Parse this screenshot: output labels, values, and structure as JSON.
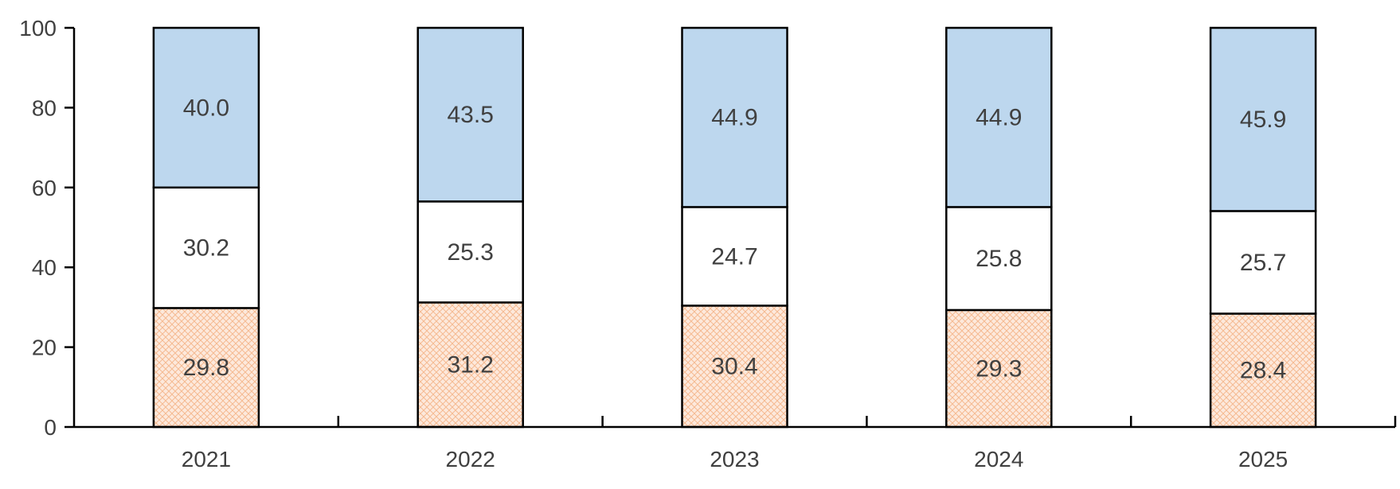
{
  "chart_data": {
    "type": "bar",
    "stacked": true,
    "categories": [
      "2021",
      "2022",
      "2023",
      "2024",
      "2025"
    ],
    "series": [
      {
        "values": [
          29.8,
          31.2,
          30.4,
          29.3,
          28.4
        ],
        "labels": [
          "29.8",
          "31.2",
          "30.4",
          "29.3",
          "28.4"
        ],
        "fill": "#fde9dc",
        "pattern": "crosshatch",
        "pattern_color": "#f4b183"
      },
      {
        "values": [
          30.2,
          25.3,
          24.7,
          25.8,
          25.7
        ],
        "labels": [
          "30.2",
          "25.3",
          "24.7",
          "25.8",
          "25.7"
        ],
        "fill": "#ffffff"
      },
      {
        "values": [
          40.0,
          43.5,
          44.9,
          44.9,
          45.9
        ],
        "labels": [
          "40.0",
          "43.5",
          "44.9",
          "44.9",
          "45.9"
        ],
        "fill": "#bdd7ee"
      }
    ],
    "ylim": [
      0,
      100
    ],
    "yticks": [
      "0",
      "20",
      "40",
      "60",
      "80",
      "100"
    ],
    "xlabel": "",
    "ylabel": "",
    "title": "",
    "grid": false,
    "legend": "none"
  }
}
